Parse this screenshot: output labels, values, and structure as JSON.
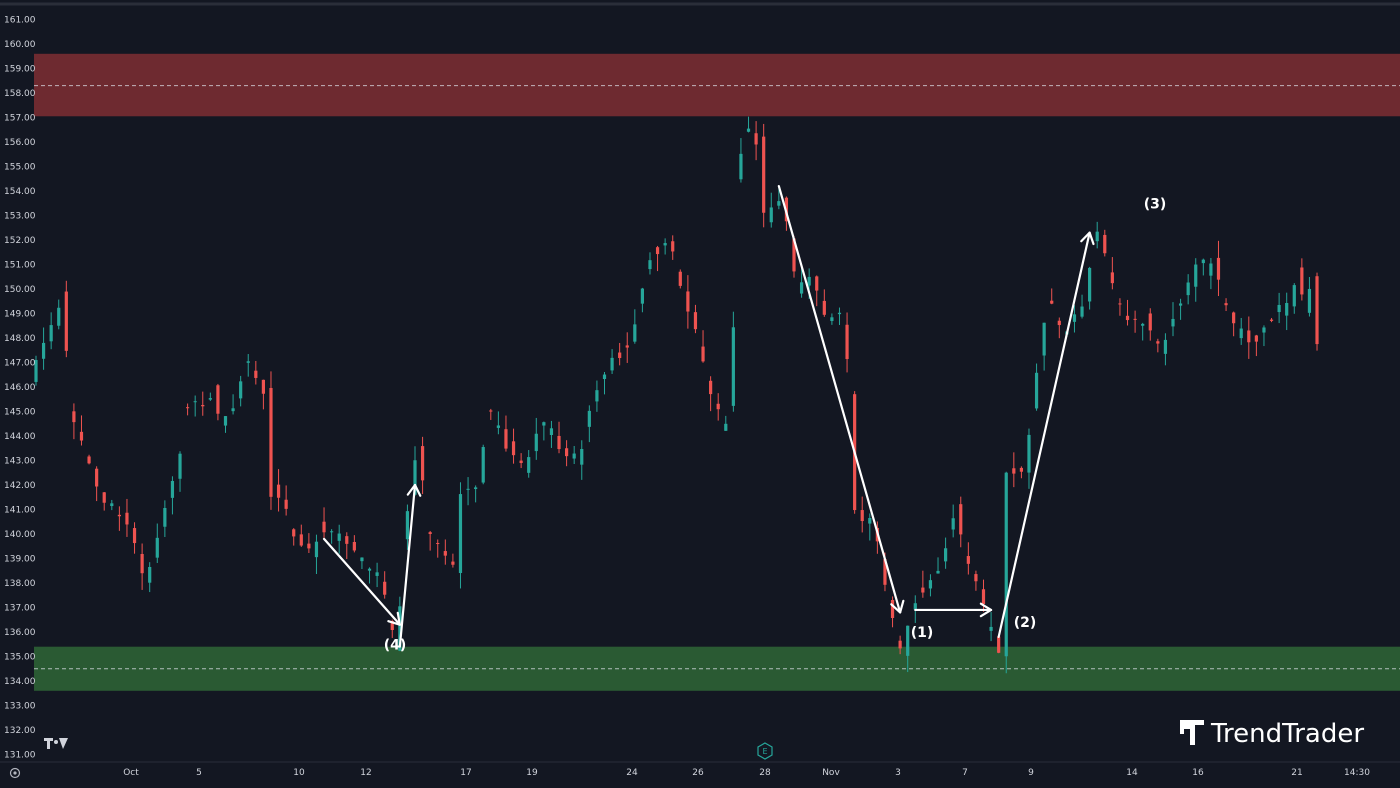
{
  "chart_data": {
    "type": "candlestick",
    "price_axis": {
      "ylim": [
        131,
        161.6
      ],
      "ticks": [
        "161.00",
        "160.00",
        "159.00",
        "158.00",
        "157.00",
        "156.00",
        "155.00",
        "154.00",
        "153.00",
        "152.00",
        "151.00",
        "150.00",
        "149.00",
        "148.00",
        "147.00",
        "146.00",
        "145.00",
        "144.00",
        "143.00",
        "142.00",
        "141.00",
        "140.00",
        "139.00",
        "138.00",
        "137.00",
        "136.00",
        "135.00",
        "134.00",
        "133.00",
        "132.00",
        "131.00"
      ]
    },
    "time_axis": {
      "labels": [
        "Oct",
        "5",
        "10",
        "12",
        "17",
        "19",
        "24",
        "26",
        "28",
        "Nov",
        "3",
        "7",
        "9",
        "14",
        "16",
        "21",
        "14:30"
      ]
    },
    "zones": [
      {
        "name": "supply",
        "from": 157.05,
        "to": 159.6,
        "mid": 158.3,
        "color": "#6e2a30"
      },
      {
        "name": "demand",
        "from": 133.6,
        "to": 135.4,
        "mid": 134.5,
        "color": "#2a5a33"
      }
    ],
    "close_path": [
      [
        0,
        146.5
      ],
      [
        3,
        148.8
      ],
      [
        4,
        150.0
      ],
      [
        5,
        145.2
      ],
      [
        9,
        141.5
      ],
      [
        12,
        140.8
      ],
      [
        14,
        139.2
      ],
      [
        15,
        138.0
      ],
      [
        17,
        140.5
      ],
      [
        19,
        142.5
      ],
      [
        19.5,
        143.0
      ],
      [
        20,
        145.0
      ],
      [
        24,
        145.8
      ],
      [
        25,
        144.5
      ],
      [
        27,
        145.5
      ],
      [
        28,
        147.0
      ],
      [
        30,
        146.2
      ],
      [
        31,
        145.7
      ],
      [
        32,
        141.8
      ],
      [
        35,
        139.7
      ],
      [
        37,
        139.3
      ],
      [
        38,
        140.5
      ],
      [
        40,
        139.8
      ],
      [
        42,
        139.5
      ],
      [
        44,
        138.6
      ],
      [
        46,
        138.2
      ],
      [
        47,
        136.5
      ],
      [
        48,
        135.1
      ],
      [
        49,
        139.5
      ],
      [
        50,
        141.8
      ],
      [
        51,
        143.8
      ],
      [
        52,
        140.2
      ],
      [
        55,
        138.8
      ],
      [
        56,
        138.2
      ],
      [
        56.5,
        141.5
      ],
      [
        59,
        142.3
      ],
      [
        60,
        145.0
      ],
      [
        62,
        144.0
      ],
      [
        64,
        143.0
      ],
      [
        65,
        142.3
      ],
      [
        67,
        144.5
      ],
      [
        70,
        143.6
      ],
      [
        72,
        142.8
      ],
      [
        74,
        145.5
      ],
      [
        77,
        147.3
      ],
      [
        79,
        148.0
      ],
      [
        80,
        149.5
      ],
      [
        82,
        151.6
      ],
      [
        84,
        152.0
      ],
      [
        86,
        149.8
      ],
      [
        88,
        147.8
      ],
      [
        89,
        146.0
      ],
      [
        91,
        144.4
      ],
      [
        92,
        145.0
      ],
      [
        92.5,
        148.5
      ],
      [
        93,
        154.5
      ],
      [
        94,
        156.5
      ],
      [
        96,
        156.0
      ],
      [
        97,
        153.0
      ],
      [
        99,
        153.8
      ],
      [
        101,
        150.0
      ],
      [
        103,
        150.5
      ],
      [
        105,
        148.6
      ],
      [
        107,
        148.8
      ],
      [
        108,
        145.5
      ],
      [
        108.5,
        141.0
      ],
      [
        111,
        140.2
      ],
      [
        113,
        137.5
      ],
      [
        114,
        135.6
      ],
      [
        115,
        135.3
      ],
      [
        116,
        137.2
      ],
      [
        118,
        138.0
      ],
      [
        120,
        139.0
      ],
      [
        122,
        141.0
      ],
      [
        123,
        139.2
      ],
      [
        125,
        137.8
      ],
      [
        126,
        136.3
      ],
      [
        128,
        135.1
      ],
      [
        128.5,
        142.6
      ],
      [
        131,
        142.8
      ],
      [
        132,
        145.3
      ],
      [
        134,
        149.8
      ],
      [
        136,
        148.0
      ],
      [
        139,
        149.6
      ],
      [
        140,
        152.2
      ],
      [
        141,
        152.3
      ],
      [
        143,
        149.4
      ],
      [
        145,
        148.6
      ],
      [
        147,
        148.8
      ],
      [
        149,
        147.5
      ],
      [
        151,
        149.3
      ],
      [
        153,
        150.2
      ],
      [
        154,
        151.2
      ],
      [
        155,
        150.6
      ],
      [
        156,
        151.4
      ],
      [
        157,
        149.6
      ],
      [
        159,
        148.2
      ],
      [
        162,
        148.0
      ],
      [
        164,
        149.0
      ],
      [
        166,
        149.3
      ],
      [
        167,
        150.8
      ],
      [
        168,
        149.2
      ],
      [
        169,
        150.8
      ],
      [
        169.5,
        147.9
      ]
    ],
    "breaks": [
      5,
      19.5,
      31,
      56,
      92,
      96,
      108,
      128
    ],
    "annotations": [
      {
        "text": "(1)",
        "price": 136.0
      },
      {
        "text": "(2)",
        "price": 136.4
      },
      {
        "text": "(3)",
        "price": 153.5
      },
      {
        "text": "(4)",
        "price": 135.5
      }
    ],
    "arrows": [
      {
        "from": [
          38,
          139.8
        ],
        "to": [
          48,
          136.3
        ]
      },
      {
        "from": [
          48,
          135.4
        ],
        "to": [
          50,
          142.0
        ]
      },
      {
        "from": [
          98,
          154.2
        ],
        "to": [
          114,
          136.8
        ]
      },
      {
        "from": [
          116,
          136.9
        ],
        "to": [
          126,
          136.9
        ]
      },
      {
        "from": [
          127,
          135.8
        ],
        "to": [
          139,
          152.3
        ]
      }
    ],
    "candle_up_color": "#26a69a",
    "candle_down_color": "#ef5350",
    "logo": {
      "icon": "tradingview-logo-icon",
      "text": "TrendTrader"
    },
    "footer_icon": "settings-gear-icon"
  }
}
